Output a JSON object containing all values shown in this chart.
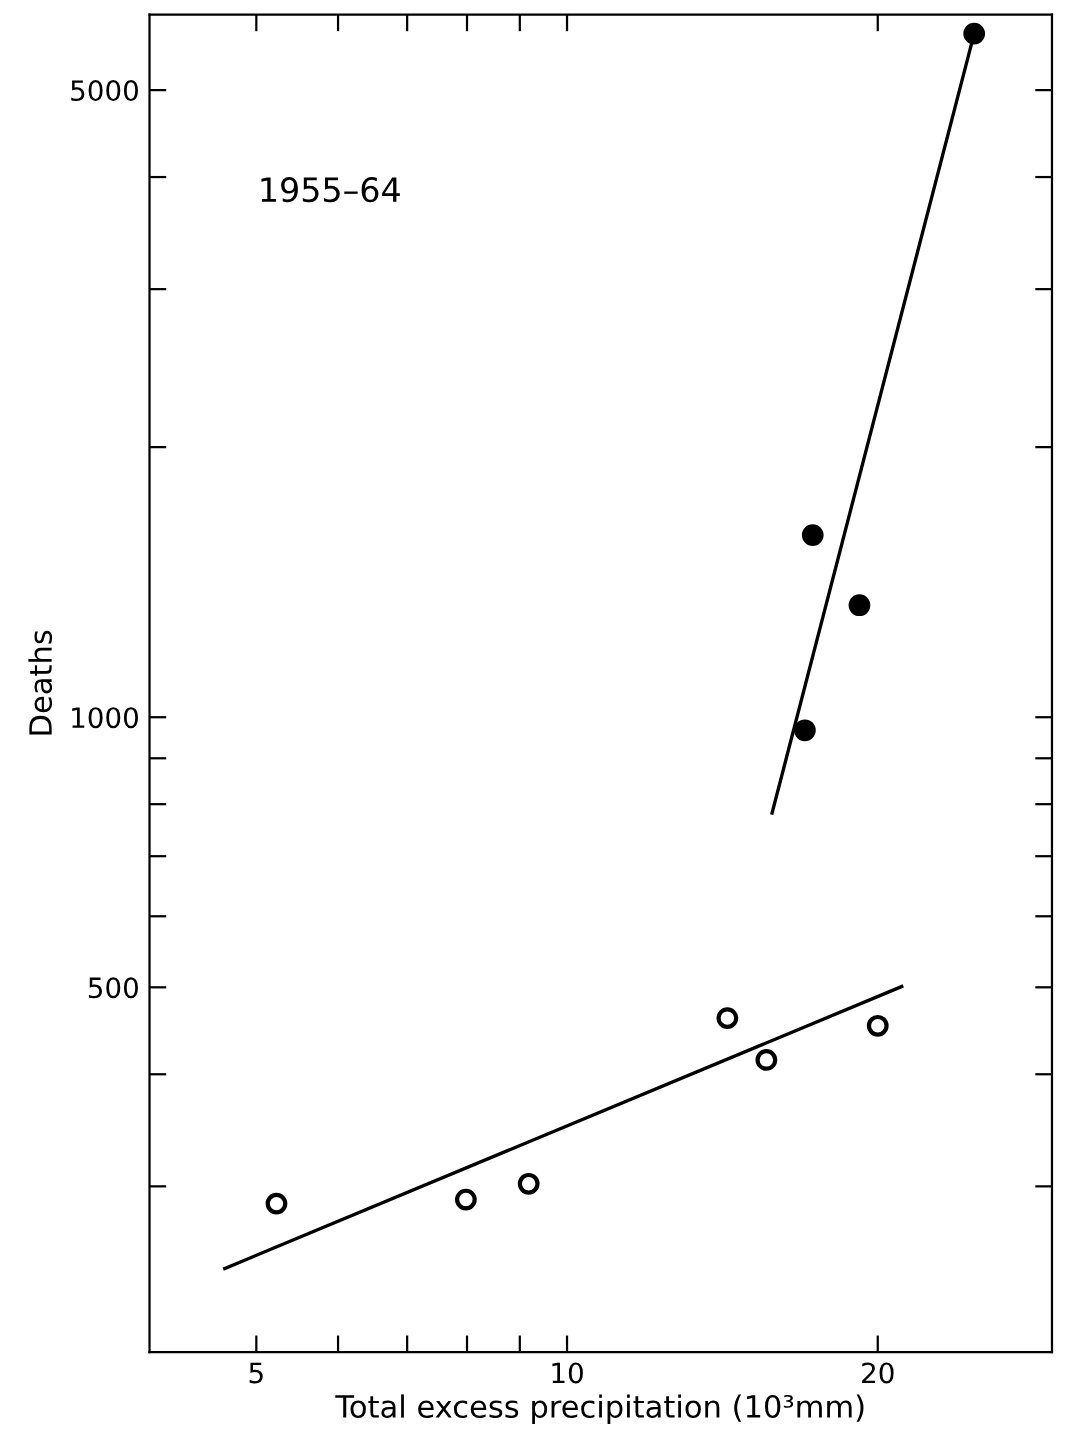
{
  "chart_data": {
    "type": "scatter",
    "xlabel": "Total excess precipitation (10³mm)",
    "ylabel": "Deaths",
    "annotations": [
      "1955–64"
    ],
    "log": "xy",
    "grid": false,
    "legend": false,
    "marker": "circle",
    "xlim": [
      3.94,
      29.5
    ],
    "ylim": [
      196,
      6070
    ],
    "xticks": [
      5,
      {
        "value": 6,
        "label": null
      },
      {
        "value": 7,
        "label": null
      },
      {
        "value": 8,
        "label": null
      },
      {
        "value": 9,
        "label": null
      },
      10,
      20
    ],
    "yticks": [
      {
        "value": 300,
        "label": null
      },
      {
        "value": 400,
        "label": null
      },
      500,
      {
        "value": 600,
        "label": null
      },
      {
        "value": 700,
        "label": null
      },
      {
        "value": 800,
        "label": null
      },
      {
        "value": 900,
        "label": null
      },
      1000,
      {
        "value": 2000,
        "label": null
      },
      {
        "value": 3000,
        "label": null
      },
      {
        "value": 4000,
        "label": null
      },
      5000
    ],
    "series": [
      {
        "color": "#ffffff",
        "x": [
          5.23,
          7.98,
          9.18,
          14.3,
          15.6,
          20
        ],
        "values": [
          287,
          290,
          302,
          462,
          415,
          453
        ]
      },
      {
        "type": "line",
        "color": "#000000",
        "marker": "none",
        "line_style": "solid",
        "x": [
          4.66,
          21.1
        ],
        "values": [
          243,
          501
        ]
      },
      {
        "color": "#000000",
        "x": [
          17.0,
          17.3,
          19.2,
          24.8
        ],
        "values": [
          967,
          1596,
          1333,
          5780
        ]
      },
      {
        "type": "line",
        "color": "#000000",
        "marker": "none",
        "line_style": "solid",
        "x": [
          15.8,
          24.7
        ],
        "values": [
          782,
          5680
        ]
      }
    ]
  }
}
